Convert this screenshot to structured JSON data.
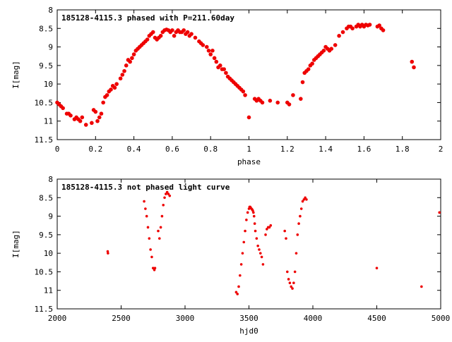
{
  "chart_data": [
    {
      "type": "scatter",
      "title": "185128-4115.3 phased with P=211.60day",
      "xlabel": "phase",
      "ylabel": "I[mag]",
      "xlim": [
        0,
        2
      ],
      "ylim": [
        8,
        11.5
      ],
      "y_inverted": true,
      "grid": false,
      "marker_color": "#ee0000",
      "xticks": [
        "0",
        "0.2",
        "0.4",
        "0.6",
        "0.8",
        "1",
        "1.2",
        "1.4",
        "1.6",
        "1.8",
        "2"
      ],
      "yticks": [
        "8",
        "8.5",
        "9",
        "9.5",
        "10",
        "10.5",
        "11",
        "11.5"
      ],
      "series": [
        {
          "x": [
            0.0,
            0.01,
            0.02,
            0.03,
            0.05,
            0.06,
            0.07,
            0.09,
            0.1,
            0.11,
            0.12,
            0.13,
            0.15,
            0.18,
            0.19,
            0.2,
            0.21,
            0.22,
            0.23,
            0.24,
            0.25,
            0.26,
            0.27,
            0.28,
            0.29,
            0.3,
            0.31,
            0.33,
            0.34,
            0.35,
            0.36,
            0.37,
            0.38,
            0.39,
            0.4,
            0.41,
            0.42,
            0.43,
            0.44,
            0.45,
            0.46,
            0.47,
            0.48,
            0.49,
            0.5,
            0.51,
            0.52,
            0.53,
            0.54,
            0.55,
            0.56,
            0.57,
            0.58,
            0.59,
            0.6,
            0.61,
            0.62,
            0.63,
            0.64,
            0.65,
            0.66,
            0.67,
            0.68,
            0.69,
            0.7,
            0.72,
            0.74,
            0.75,
            0.76,
            0.78,
            0.79,
            0.8,
            0.81,
            0.82,
            0.83,
            0.84,
            0.85,
            0.86,
            0.87,
            0.88,
            0.89,
            0.9,
            0.91,
            0.92,
            0.93,
            0.94,
            0.95,
            0.96,
            0.97,
            0.98,
            1.0,
            1.03,
            1.04,
            1.05,
            1.06,
            1.07,
            1.11,
            1.15,
            1.2,
            1.21,
            1.23,
            1.27,
            1.28,
            1.29,
            1.3,
            1.31,
            1.32,
            1.33,
            1.34,
            1.35,
            1.36,
            1.37,
            1.38,
            1.39,
            1.4,
            1.41,
            1.42,
            1.43,
            1.45,
            1.47,
            1.49,
            1.51,
            1.52,
            1.53,
            1.54,
            1.56,
            1.57,
            1.58,
            1.59,
            1.6,
            1.61,
            1.62,
            1.63,
            1.67,
            1.68,
            1.69,
            1.7,
            1.85,
            1.86
          ],
          "y": [
            10.5,
            10.55,
            10.6,
            10.65,
            10.8,
            10.8,
            10.85,
            10.95,
            10.9,
            10.95,
            11.0,
            10.9,
            11.1,
            11.05,
            10.7,
            10.75,
            11.0,
            10.9,
            10.8,
            10.5,
            10.35,
            10.3,
            10.2,
            10.15,
            10.05,
            10.1,
            10.0,
            9.85,
            9.75,
            9.65,
            9.5,
            9.35,
            9.4,
            9.3,
            9.2,
            9.1,
            9.05,
            9.0,
            8.95,
            8.9,
            8.85,
            8.8,
            8.7,
            8.65,
            8.6,
            8.75,
            8.8,
            8.75,
            8.7,
            8.6,
            8.55,
            8.53,
            8.55,
            8.6,
            8.55,
            8.7,
            8.6,
            8.55,
            8.6,
            8.6,
            8.55,
            8.65,
            8.6,
            8.7,
            8.65,
            8.75,
            8.85,
            8.9,
            8.95,
            9.0,
            9.1,
            9.2,
            9.1,
            9.3,
            9.4,
            9.55,
            9.5,
            9.6,
            9.6,
            9.7,
            9.8,
            9.85,
            9.9,
            9.95,
            10.0,
            10.05,
            10.1,
            10.15,
            10.2,
            10.3,
            10.9,
            10.4,
            10.45,
            10.4,
            10.45,
            10.5,
            10.45,
            10.5,
            10.5,
            10.55,
            10.3,
            10.4,
            9.95,
            9.7,
            9.65,
            9.6,
            9.5,
            9.45,
            9.35,
            9.3,
            9.25,
            9.2,
            9.15,
            9.1,
            9.0,
            9.05,
            9.1,
            9.05,
            8.95,
            8.7,
            8.6,
            8.5,
            8.45,
            8.45,
            8.5,
            8.45,
            8.4,
            8.45,
            8.4,
            8.45,
            8.4,
            8.42,
            8.4,
            8.45,
            8.42,
            8.5,
            8.55,
            9.4,
            9.55
          ]
        }
      ]
    },
    {
      "type": "scatter",
      "title": "185128-4115.3 not phased light curve",
      "xlabel": "hjd0",
      "ylabel": "I[mag]",
      "xlim": [
        2000,
        5000
      ],
      "ylim": [
        8,
        11.5
      ],
      "y_inverted": true,
      "grid": false,
      "marker_color": "#ee0000",
      "xticks": [
        "2000",
        "2500",
        "3000",
        "3500",
        "4000",
        "4500",
        "5000"
      ],
      "yticks": [
        "8",
        "8.5",
        "9",
        "9.5",
        "10",
        "10.5",
        "11",
        "11.5"
      ],
      "series": [
        {
          "x": [
            2395,
            2397,
            2680,
            2690,
            2700,
            2710,
            2720,
            2730,
            2740,
            2750,
            2760,
            2765,
            2790,
            2800,
            2810,
            2820,
            2830,
            2840,
            2850,
            2860,
            2870,
            2880,
            3400,
            3410,
            3420,
            3430,
            3440,
            3450,
            3460,
            3470,
            3480,
            3490,
            3500,
            3505,
            3510,
            3515,
            3520,
            3525,
            3530,
            3535,
            3540,
            3545,
            3550,
            3560,
            3570,
            3580,
            3590,
            3600,
            3610,
            3630,
            3640,
            3650,
            3660,
            3670,
            3780,
            3790,
            3800,
            3810,
            3820,
            3830,
            3840,
            3850,
            3860,
            3870,
            3880,
            3890,
            3900,
            3910,
            3920,
            3930,
            3940,
            3950,
            4500,
            4850,
            4990
          ],
          "y": [
            9.95,
            10.0,
            8.6,
            8.8,
            9.0,
            9.3,
            9.6,
            9.9,
            10.1,
            10.4,
            10.45,
            10.4,
            9.4,
            9.6,
            9.3,
            9.0,
            8.7,
            8.5,
            8.4,
            8.35,
            8.4,
            8.45,
            11.05,
            11.1,
            10.9,
            10.6,
            10.3,
            10.0,
            9.7,
            9.4,
            9.1,
            8.9,
            8.8,
            8.75,
            8.75,
            8.78,
            8.8,
            8.82,
            8.85,
            8.9,
            9.0,
            9.2,
            9.4,
            9.6,
            9.8,
            9.9,
            10.0,
            10.1,
            10.3,
            9.5,
            9.35,
            9.3,
            9.3,
            9.25,
            9.4,
            9.6,
            10.5,
            10.7,
            10.8,
            10.9,
            10.95,
            10.8,
            10.5,
            10.0,
            9.5,
            9.2,
            9.0,
            8.8,
            8.6,
            8.55,
            8.5,
            8.55,
            10.4,
            10.9,
            8.9
          ]
        }
      ]
    }
  ]
}
